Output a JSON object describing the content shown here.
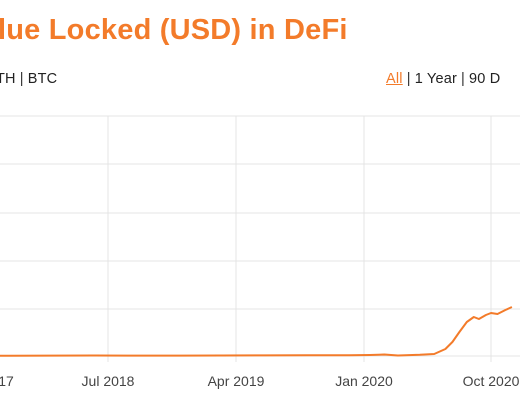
{
  "header": {
    "title": "lue Locked (USD) in DeFi",
    "accent_color": "#f37b2a"
  },
  "denomination": {
    "items": [
      "TH",
      "BTC"
    ]
  },
  "range": {
    "items": [
      "All",
      "1 Year",
      "90 D"
    ],
    "selected": "All"
  },
  "chart_data": {
    "type": "line",
    "title": "",
    "xlabel": "",
    "ylabel": "",
    "x_ticks": [
      "17",
      "Jul 2018",
      "Apr 2019",
      "Jan 2020",
      "Oct 2020"
    ],
    "series": [
      {
        "color": "#f37b2a",
        "points": [
          [
            "2017-09-01",
            0.02
          ],
          [
            "2017-12-01",
            0.03
          ],
          [
            "2018-03-01",
            0.04
          ],
          [
            "2018-06-01",
            0.05
          ],
          [
            "2018-09-01",
            0.04
          ],
          [
            "2018-12-01",
            0.04
          ],
          [
            "2019-03-01",
            0.05
          ],
          [
            "2019-06-01",
            0.06
          ],
          [
            "2019-09-01",
            0.07
          ],
          [
            "2019-12-01",
            0.07
          ],
          [
            "2020-01-15",
            0.1
          ],
          [
            "2020-02-15",
            0.15
          ],
          [
            "2020-03-15",
            0.05
          ],
          [
            "2020-05-01",
            0.12
          ],
          [
            "2020-06-01",
            0.2
          ],
          [
            "2020-06-25",
            0.7
          ],
          [
            "2020-07-10",
            1.4
          ],
          [
            "2020-07-25",
            2.4
          ],
          [
            "2020-08-10",
            3.4
          ],
          [
            "2020-08-25",
            3.9
          ],
          [
            "2020-09-05",
            3.7
          ],
          [
            "2020-09-20",
            4.1
          ],
          [
            "2020-10-01",
            4.3
          ],
          [
            "2020-10-15",
            4.2
          ],
          [
            "2020-11-01",
            4.6
          ],
          [
            "2020-11-15",
            4.9
          ]
        ]
      }
    ],
    "grid": true
  }
}
